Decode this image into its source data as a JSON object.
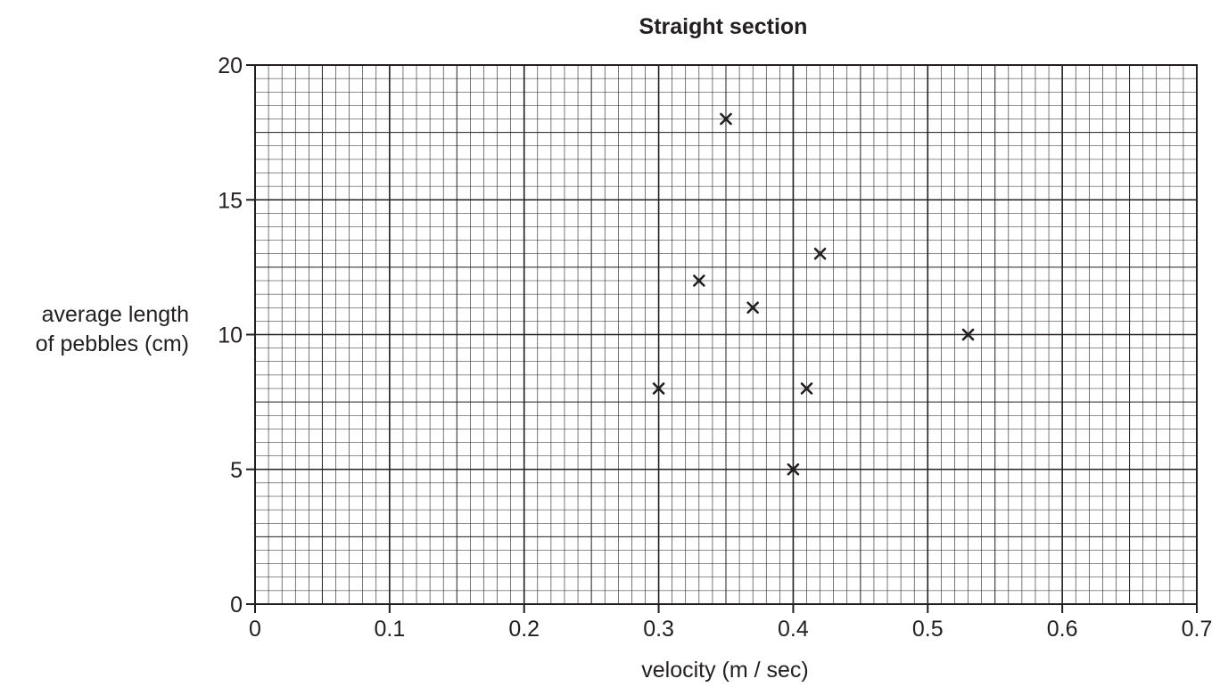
{
  "chart_data": {
    "type": "scatter",
    "title": "Straight section",
    "xlabel": "velocity (m / sec)",
    "ylabel_lines": [
      "average length",
      "of pebbles (cm)"
    ],
    "xlim": [
      0,
      0.7
    ],
    "ylim": [
      0,
      20
    ],
    "x_ticks": [
      "0",
      "0.1",
      "0.2",
      "0.3",
      "0.4",
      "0.5",
      "0.6",
      "0.7"
    ],
    "y_ticks": [
      "0",
      "5",
      "10",
      "15",
      "20"
    ],
    "grid": true,
    "marker": "x",
    "points": [
      {
        "x": 0.3,
        "y": 8
      },
      {
        "x": 0.33,
        "y": 12
      },
      {
        "x": 0.35,
        "y": 18
      },
      {
        "x": 0.37,
        "y": 11
      },
      {
        "x": 0.4,
        "y": 5
      },
      {
        "x": 0.41,
        "y": 8
      },
      {
        "x": 0.42,
        "y": 13
      },
      {
        "x": 0.53,
        "y": 10
      }
    ],
    "colors": {
      "ink": "#231f20",
      "background": "#ffffff"
    }
  }
}
